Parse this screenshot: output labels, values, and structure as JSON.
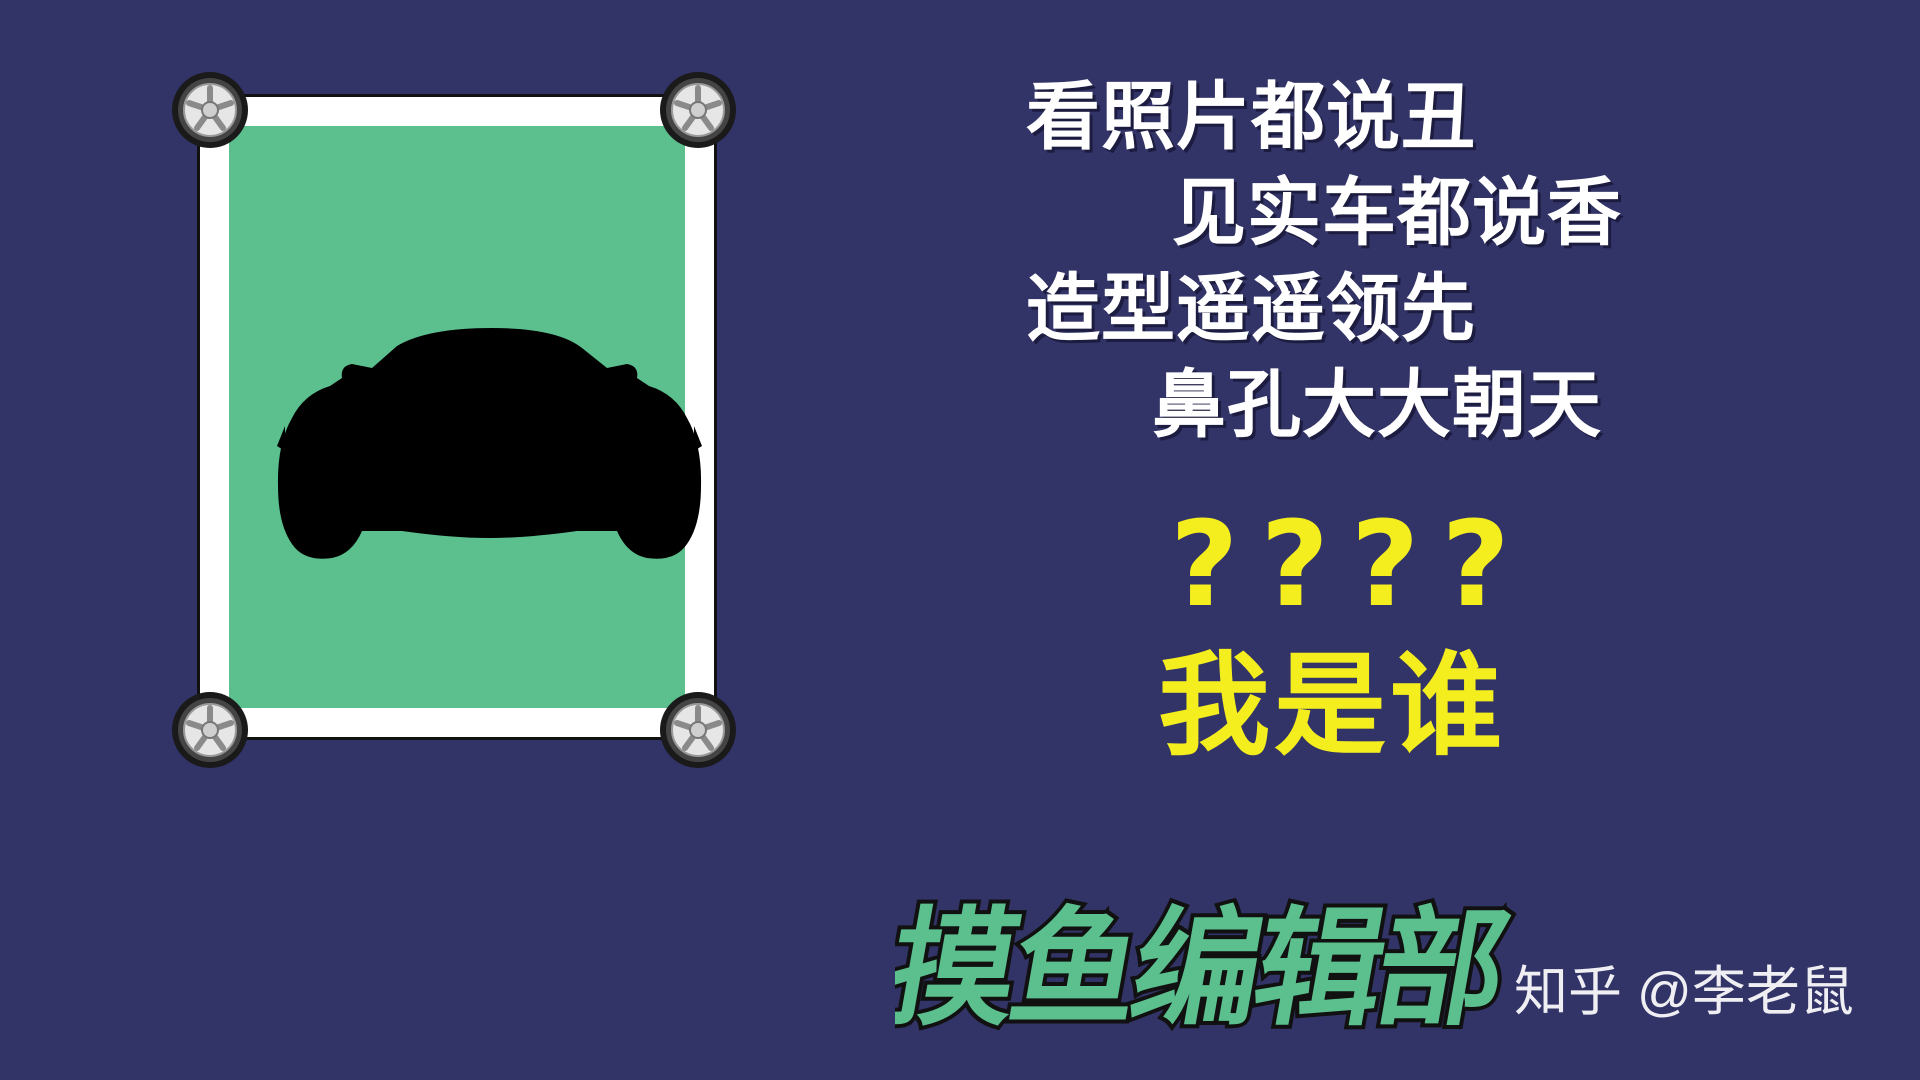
{
  "slogan": {
    "line1": "看照片都说丑",
    "line2": "见实车都说香",
    "line3": "造型遥遥领先",
    "line4": "鼻孔大大朝天"
  },
  "question_marks": "????",
  "who_am_i": "我是谁",
  "logo_text": "摸鱼编辑部",
  "watermark": "知乎 @李老鼠",
  "colors": {
    "background": "#323366",
    "card_fill": "#5bbf8e",
    "highlight": "#f5ee1e",
    "logo_fill": "#5bbf8e"
  },
  "icons": [
    "tire-icon",
    "car-silhouette"
  ]
}
